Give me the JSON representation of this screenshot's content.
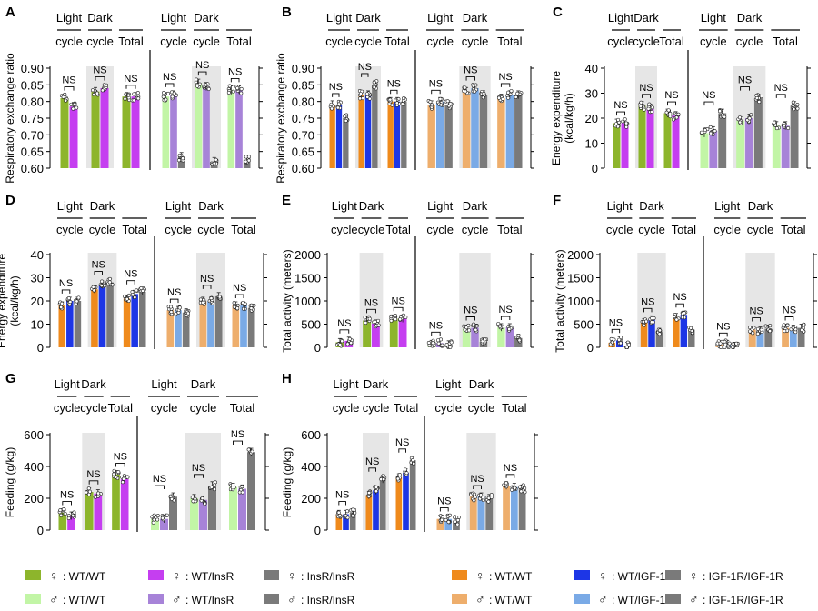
{
  "axis_labels": {
    "rer": "Respiratory exchange ratio",
    "ee": [
      "Energy expenditure",
      "(kcal/kg/h)"
    ],
    "act": "Total activity  (meters)",
    "feed": "Feeding (g/kg)"
  },
  "cycle_labels": {
    "light": [
      "Light",
      "cycle"
    ],
    "dark": [
      "Dark",
      "cycle"
    ],
    "total": "Total"
  },
  "sig_label": "NS",
  "colors": {
    "f_ins_wt": "#8db52c",
    "f_ins_insr": "#c53ef0",
    "f_ins_dko": "#7a7a7a",
    "m_ins_wt": "#c2f5a6",
    "m_ins_insr": "#a783d8",
    "m_ins_dko": "#7a7a7a",
    "f_igf_wt": "#ef8a1c",
    "f_igf_igf": "#1d36e6",
    "f_igf_dko": "#7a7a7a",
    "m_igf_wt": "#eeae6c",
    "m_igf_igf": "#7aaae6",
    "m_igf_dko": "#7a7a7a",
    "shade": "#e6e6e6"
  },
  "legend": [
    {
      "sex": "♀",
      "label": ": WT/WT",
      "color": "#8db52c"
    },
    {
      "sex": "♀",
      "label": ": WT/InsR",
      "color": "#c53ef0"
    },
    {
      "sex": "♀",
      "label": ": InsR/InsR",
      "color": "#7a7a7a"
    },
    {
      "sex": "♂",
      "label": ": WT/WT",
      "color": "#c2f5a6"
    },
    {
      "sex": "♂",
      "label": ": WT/InsR",
      "color": "#a783d8"
    },
    {
      "sex": "♂",
      "label": ": InsR/InsR",
      "color": "#7a7a7a"
    },
    {
      "sex": "♀",
      "label": ": WT/WT",
      "color": "#ef8a1c"
    },
    {
      "sex": "♀",
      "label": ": WT/IGF-1R",
      "color": "#1d36e6"
    },
    {
      "sex": "♀",
      "label": ": IGF-1R/IGF-1R",
      "color": "#7a7a7a"
    },
    {
      "sex": "♂",
      "label": ": WT/WT",
      "color": "#eeae6c"
    },
    {
      "sex": "♂",
      "label": ": WT/IGF-1R",
      "color": "#7aaae6"
    },
    {
      "sex": "♂",
      "label": ": IGF-1R/IGF-1R",
      "color": "#7a7a7a"
    }
  ],
  "chart_data": [
    {
      "panel": "A",
      "type": "bar",
      "ylabel": "Respiratory exchange ratio",
      "ylim": [
        0.6,
        0.9
      ],
      "yticks": [
        "0.60",
        "0.65",
        "0.70",
        "0.75",
        "0.80",
        "0.85",
        "0.90"
      ],
      "categories": [
        "Light cycle",
        "Dark cycle",
        "Total"
      ],
      "series": [
        {
          "name": "♀ WT/WT",
          "values": [
            0.81,
            0.83,
            0.815
          ]
        },
        {
          "name": "♀ WT/InsR",
          "values": [
            0.785,
            0.84,
            0.815
          ]
        },
        {
          "name": "♂ WT/WT",
          "values": [
            0.815,
            0.855,
            0.835
          ]
        },
        {
          "name": "♂ WT/InsR",
          "values": [
            0.82,
            0.845,
            0.835
          ]
        },
        {
          "name": "♂ InsR/InsR",
          "values": [
            0.635,
            0.62,
            0.625
          ]
        }
      ]
    },
    {
      "panel": "B",
      "type": "bar",
      "ylabel": "Respiratory exchange ratio",
      "ylim": [
        0.6,
        0.9
      ],
      "yticks": [
        "0.60",
        "0.65",
        "0.70",
        "0.75",
        "0.80",
        "0.85",
        "0.90"
      ],
      "categories": [
        "Light cycle",
        "Dark cycle",
        "Total"
      ],
      "series": [
        {
          "name": "♀ WT/WT",
          "values": [
            0.79,
            0.82,
            0.8
          ]
        },
        {
          "name": "♀ WT/IGF-1R",
          "values": [
            0.79,
            0.82,
            0.8
          ]
        },
        {
          "name": "♀ IGF-1R/IGF-1R",
          "values": [
            0.75,
            0.85,
            0.8
          ]
        },
        {
          "name": "♂ WT/WT",
          "values": [
            0.79,
            0.83,
            0.81
          ]
        },
        {
          "name": "♂ WT/IGF-1R",
          "values": [
            0.8,
            0.84,
            0.82
          ]
        },
        {
          "name": "♂ IGF-1R/IGF-1R",
          "values": [
            0.79,
            0.82,
            0.82
          ]
        }
      ]
    },
    {
      "panel": "C",
      "type": "bar",
      "ylabel": "Energy expenditure (kcal/kg/h)",
      "ylim": [
        0,
        40
      ],
      "yticks": [
        "0",
        "10",
        "20",
        "30",
        "40"
      ],
      "categories": [
        "Light cycle",
        "Dark cycle",
        "Total"
      ],
      "series": [
        {
          "name": "♀ WT/WT",
          "values": [
            18,
            25,
            22
          ]
        },
        {
          "name": "♀ WT/InsR",
          "values": [
            18,
            24,
            21
          ]
        },
        {
          "name": "♂ WT/WT",
          "values": [
            14,
            19,
            17
          ]
        },
        {
          "name": "♂ WT/InsR",
          "values": [
            15,
            20,
            17
          ]
        },
        {
          "name": "♂ InsR/InsR",
          "values": [
            22,
            28,
            25
          ]
        }
      ]
    },
    {
      "panel": "D",
      "type": "bar",
      "ylabel": "Energy expenditure (kcal/kg/h)",
      "ylim": [
        0,
        40
      ],
      "yticks": [
        "0",
        "10",
        "20",
        "30",
        "40"
      ],
      "categories": [
        "Light cycle",
        "Dark cycle",
        "Total"
      ],
      "series": [
        {
          "name": "♀ WT/WT",
          "values": [
            18,
            25,
            21
          ]
        },
        {
          "name": "♀ WT/IGF-1R",
          "values": [
            20,
            27,
            23
          ]
        },
        {
          "name": "♀ IGF-1R/IGF-1R",
          "values": [
            20,
            28,
            24
          ]
        },
        {
          "name": "♂ WT/WT",
          "values": [
            16,
            20,
            18
          ]
        },
        {
          "name": "♂ WT/IGF-1R",
          "values": [
            16,
            20,
            18
          ]
        },
        {
          "name": "♂ IGF-1R/IGF-1R",
          "values": [
            15,
            22,
            17
          ]
        }
      ]
    },
    {
      "panel": "E",
      "type": "bar",
      "ylabel": "Total activity (meters)",
      "ylim": [
        0,
        2000
      ],
      "yticks": [
        "0",
        "500",
        "1000",
        "1500",
        "2000"
      ],
      "categories": [
        "Light cycle",
        "Dark cycle",
        "Total"
      ],
      "series": [
        {
          "name": "♀ WT/WT",
          "values": [
            110,
            580,
            620
          ]
        },
        {
          "name": "♀ WT/InsR",
          "values": [
            140,
            510,
            620
          ]
        },
        {
          "name": "♂ WT/WT",
          "values": [
            70,
            400,
            430
          ]
        },
        {
          "name": "♂ WT/InsR",
          "values": [
            90,
            420,
            430
          ]
        },
        {
          "name": "♂ InsR/InsR",
          "values": [
            60,
            120,
            200
          ]
        }
      ]
    },
    {
      "panel": "F",
      "type": "bar",
      "ylabel": "Total activity (meters)",
      "ylim": [
        0,
        2000
      ],
      "yticks": [
        "0",
        "500",
        "1000",
        "1500",
        "2000"
      ],
      "categories": [
        "Light cycle",
        "Dark cycle",
        "Total"
      ],
      "series": [
        {
          "name": "♀ WT/WT",
          "values": [
            100,
            540,
            650
          ]
        },
        {
          "name": "♀ WT/IGF-1R",
          "values": [
            150,
            600,
            700
          ]
        },
        {
          "name": "♀ IGF-1R/IGF-1R",
          "values": [
            30,
            330,
            380
          ]
        },
        {
          "name": "♂ WT/WT",
          "values": [
            60,
            380,
            420
          ]
        },
        {
          "name": "♂ WT/IGF-1R",
          "values": [
            70,
            360,
            400
          ]
        },
        {
          "name": "♂ IGF-1R/IGF-1R",
          "values": [
            30,
            400,
            420
          ]
        }
      ]
    },
    {
      "panel": "G",
      "type": "bar",
      "ylabel": "Feeding (g/kg)",
      "ylim": [
        0,
        600
      ],
      "yticks": [
        "0",
        "200",
        "400",
        "600"
      ],
      "categories": [
        "Light cycle",
        "Dark cycle",
        "Total"
      ],
      "series": [
        {
          "name": "♀ WT/WT",
          "values": [
            110,
            240,
            350
          ]
        },
        {
          "name": "♀ WT/InsR",
          "values": [
            90,
            230,
            320
          ]
        },
        {
          "name": "♂ WT/WT",
          "values": [
            70,
            200,
            270
          ]
        },
        {
          "name": "♂ WT/InsR",
          "values": [
            70,
            190,
            260
          ]
        },
        {
          "name": "♂ InsR/InsR",
          "values": [
            210,
            280,
            490
          ]
        }
      ]
    },
    {
      "panel": "H",
      "type": "bar",
      "ylabel": "Feeding (g/kg)",
      "ylim": [
        0,
        600
      ],
      "yticks": [
        "0",
        "200",
        "400",
        "600"
      ],
      "categories": [
        "Light cycle",
        "Dark cycle",
        "Total"
      ],
      "series": [
        {
          "name": "♀ WT/WT",
          "values": [
            100,
            220,
            330
          ]
        },
        {
          "name": "♀ WT/IGF-1R",
          "values": [
            100,
            250,
            360
          ]
        },
        {
          "name": "♀ IGF-1R/IGF-1R",
          "values": [
            110,
            320,
            440
          ]
        },
        {
          "name": "♂ WT/WT",
          "values": [
            70,
            210,
            280
          ]
        },
        {
          "name": "♂ WT/IGF-1R",
          "values": [
            70,
            210,
            270
          ]
        },
        {
          "name": "♂ IGF-1R/IGF-1R",
          "values": [
            60,
            200,
            260
          ]
        }
      ]
    }
  ]
}
